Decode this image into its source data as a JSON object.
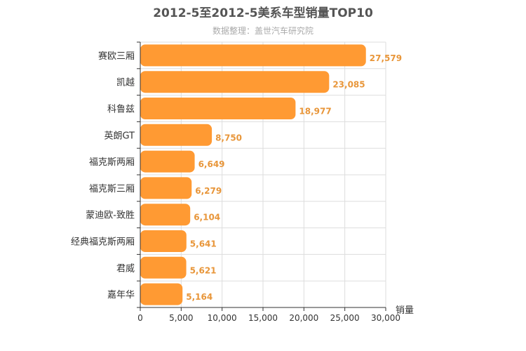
{
  "chart_data": {
    "type": "bar",
    "orientation": "horizontal",
    "title": "2012-5至2012-5美系车型销量TOP10",
    "subtitle": "数据整理：盖世汽车研究院",
    "xlabel": "销量",
    "ylabel": "",
    "xlim": [
      0,
      30000
    ],
    "xticks": [
      0,
      5000,
      10000,
      15000,
      20000,
      25000,
      30000
    ],
    "xtick_labels": [
      "0",
      "5,000",
      "10,000",
      "15,000",
      "20,000",
      "25,000",
      "30,000"
    ],
    "grid": true,
    "categories": [
      "赛欧三厢",
      "凯越",
      "科鲁兹",
      "英朗GT",
      "福克斯两厢",
      "福克斯三厢",
      "蒙迪欧-致胜",
      "经典福克斯两厢",
      "君威",
      "嘉年华"
    ],
    "values": [
      27579,
      23085,
      18977,
      8750,
      6649,
      6279,
      6104,
      5641,
      5621,
      5164
    ],
    "value_labels": [
      "27,579",
      "23,085",
      "18,977",
      "8,750",
      "6,649",
      "6,279",
      "6,104",
      "5,641",
      "5,621",
      "5,164"
    ],
    "bar_color": "#ff9a33",
    "label_color": "#e8963a"
  }
}
